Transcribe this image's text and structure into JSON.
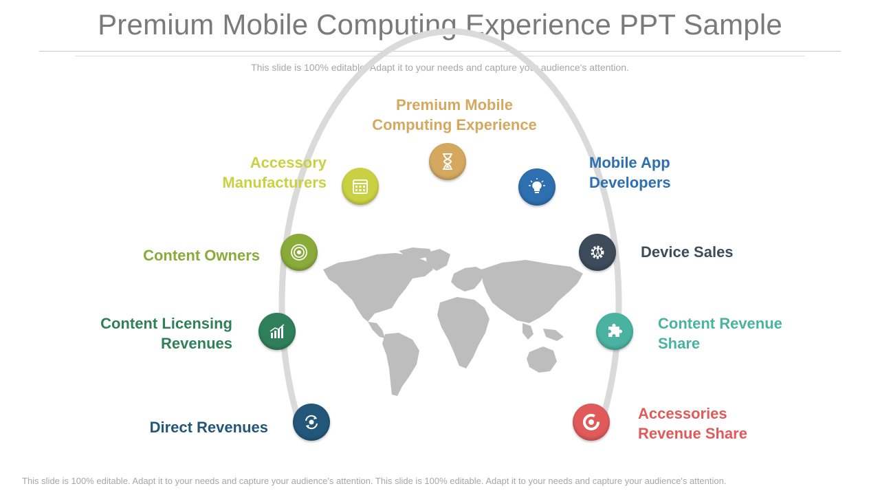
{
  "title": "Premium Mobile Computing Experience PPT Sample",
  "subtitle": "This slide is 100% editable. Adapt it to your needs and capture your audience's attention.",
  "footer": "This slide is 100% editable. Adapt it to your needs and capture your audience's attention. This slide is 100% editable. Adapt it to your needs and capture your audience's attention.",
  "center": {
    "line1": "Premium Mobile",
    "line2": "Computing Experience",
    "color": "#d4a95f",
    "icon": "hourglass-icon"
  },
  "left_nodes": [
    {
      "line1": "Accessory",
      "line2": "Manufacturers",
      "color": "#c9d143",
      "icon": "calendar-icon"
    },
    {
      "line1": "Content Owners",
      "line2": "",
      "color": "#8aaa3a",
      "icon": "target-icon"
    },
    {
      "line1": "Content Licensing",
      "line2": "Revenues",
      "color": "#2f7f5a",
      "icon": "bar-chart-icon"
    },
    {
      "line1": "Direct Revenues",
      "line2": "",
      "color": "#23577a",
      "icon": "refresh-gear-icon"
    }
  ],
  "right_nodes": [
    {
      "line1": "Mobile App",
      "line2": "Developers",
      "color": "#2e6fb0",
      "icon": "lightbulb-icon"
    },
    {
      "line1": "Device Sales",
      "line2": "",
      "color": "#3d4b5a",
      "icon": "gear-person-icon"
    },
    {
      "line1": "Content Revenue",
      "line2": "Share",
      "color": "#4ab2a0",
      "icon": "puzzle-icon"
    },
    {
      "line1": "Accessories",
      "line2": "Revenue Share",
      "color": "#e05a5a",
      "icon": "donut-icon"
    }
  ]
}
